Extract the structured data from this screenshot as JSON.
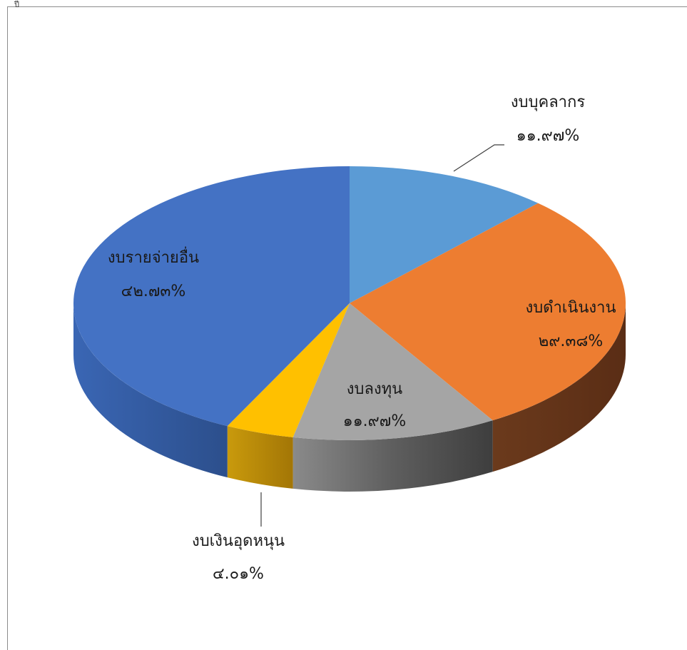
{
  "corner_mark": "ปี",
  "chart_data": {
    "type": "pie",
    "style": "3d",
    "title": "",
    "slices": [
      {
        "name": "งบบุคลากร",
        "value": 11.97,
        "label": "๑๑.๙๗%",
        "color": "#5b9bd5",
        "side_color": "#3d6f9e"
      },
      {
        "name": "งบดำเนินงาน",
        "value": 29.38,
        "label": "๒๙.๓๘%",
        "color": "#ed7d31",
        "side_color": "#63331a"
      },
      {
        "name": "งบลงทุน",
        "value": 11.97,
        "label": "๑๑.๙๗%",
        "color": "#a5a5a5",
        "side_color": "#4a4a4a"
      },
      {
        "name": "งบเงินอุดหนุน",
        "value": 4.01,
        "label": "๔.๐๑%",
        "color": "#ffc000",
        "side_color": "#b07f05"
      },
      {
        "name": "งบรายจ่ายอื่น",
        "value": 42.73,
        "label": "๔๒.๗๓%",
        "color": "#4472c4",
        "side_color": "#2f5597"
      }
    ]
  }
}
